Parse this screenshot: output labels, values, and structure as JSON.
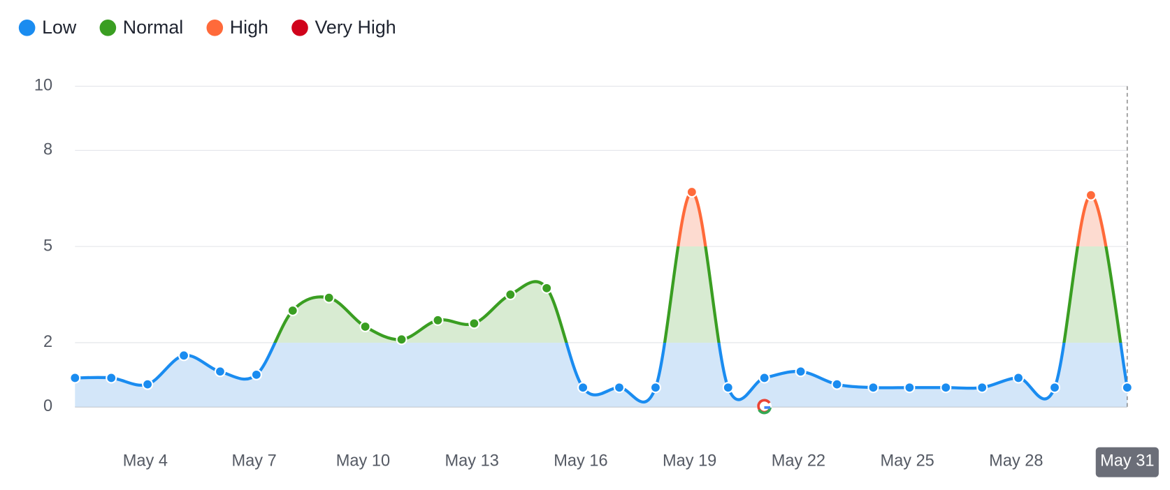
{
  "chart_data": {
    "type": "line",
    "levels": [
      {
        "name": "Low",
        "color": "#1a8cf0",
        "fill": "#d3e6f9"
      },
      {
        "name": "Normal",
        "color": "#3a9e22",
        "fill": "#d8ebd2"
      },
      {
        "name": "High",
        "color": "#ff6a3a",
        "fill": "#fddbd0"
      },
      {
        "name": "Very High",
        "color": "#d0021b",
        "fill": "#f6cdd2"
      }
    ],
    "categories": [
      null,
      null,
      "May 4",
      null,
      null,
      "May 7",
      null,
      null,
      "May 10",
      null,
      null,
      "May 13",
      null,
      null,
      "May 16",
      null,
      null,
      "May 19",
      null,
      null,
      "May 22",
      null,
      null,
      "May 25",
      null,
      null,
      "May 28",
      null,
      null,
      "May 31"
    ],
    "values": [
      0.9,
      0.9,
      0.7,
      1.6,
      1.1,
      1.0,
      3.0,
      3.4,
      2.5,
      2.1,
      2.7,
      2.6,
      3.5,
      3.7,
      0.6,
      0.6,
      0.6,
      6.7,
      0.6,
      0.9,
      1.1,
      0.7,
      0.6,
      0.6,
      0.6,
      0.6,
      0.9,
      0.6,
      6.6,
      0.6
    ],
    "ylim": [
      0,
      10
    ],
    "yticks": [
      0,
      2,
      5,
      8,
      10
    ],
    "grid": true
  }
}
